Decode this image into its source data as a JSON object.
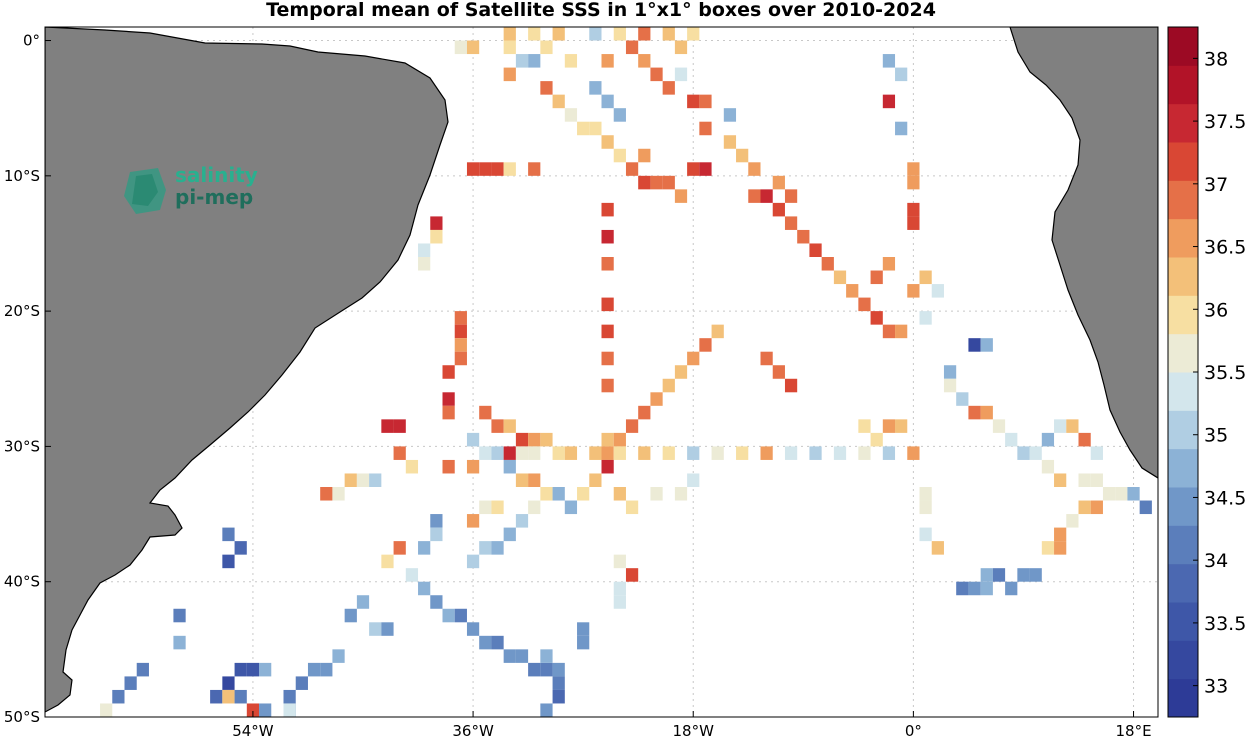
{
  "title": "Temporal mean of Satellite SSS in 1°x1° boxes over 2010-2024",
  "logo": {
    "line1": "salinity",
    "line2": "pi-mep"
  },
  "axes": {
    "x_ticks": [
      {
        "lon": -54,
        "label": "54°W"
      },
      {
        "lon": -36,
        "label": "36°W"
      },
      {
        "lon": -18,
        "label": "18°W"
      },
      {
        "lon": 0,
        "label": "0°"
      },
      {
        "lon": 18,
        "label": "18°E"
      }
    ],
    "y_ticks": [
      {
        "lat": 0,
        "label": "0°"
      },
      {
        "lat": -10,
        "label": "10°S"
      },
      {
        "lat": -20,
        "label": "20°S"
      },
      {
        "lat": -30,
        "label": "30°S"
      },
      {
        "lat": -40,
        "label": "40°S"
      },
      {
        "lat": -50,
        "label": "50°S"
      }
    ],
    "lon_range": [
      -71,
      20
    ],
    "lat_range": [
      -50,
      1
    ]
  },
  "colorbar": {
    "min": 32.75,
    "max": 38.25,
    "tick_values": [
      33,
      33.5,
      34,
      34.5,
      35,
      35.5,
      36,
      36.5,
      37,
      37.5,
      38
    ],
    "tick_labels": [
      "33",
      "33.5",
      "34",
      "34.5",
      "35",
      "35.5",
      "36",
      "36.5",
      "37",
      "37.5",
      "38"
    ],
    "colors": [
      "#2d3b97",
      "#35489f",
      "#3e57a8",
      "#4b68b1",
      "#5b7ebb",
      "#7097c8",
      "#8cb2d6",
      "#b0cee3",
      "#d3e6ec",
      "#ecebd6",
      "#f7dfa2",
      "#f3c079",
      "#ef9c5e",
      "#e57048",
      "#d94734",
      "#c72832",
      "#b21328",
      "#9c0a24"
    ]
  },
  "colors": {
    "land": "#808080",
    "coast": "#000000",
    "grid": "#c8c8c8"
  },
  "chart_data": {
    "type": "heatmap",
    "title": "Temporal mean of Satellite SSS in 1°x1° boxes over 2010-2024",
    "units": "psu",
    "cell_size_deg": 1,
    "cells": [
      [
        -36,
        -9.5,
        37.2
      ],
      [
        -35,
        -9.5,
        37.3
      ],
      [
        -34,
        -9.5,
        37.1
      ],
      [
        -33,
        -9.5,
        36.0
      ],
      [
        -31,
        -9.5,
        37.0
      ],
      [
        -22,
        -10.5,
        37.3
      ],
      [
        -21,
        -10.5,
        37.0
      ],
      [
        -20,
        -10.5,
        36.8
      ],
      [
        -19,
        -11.5,
        36.7
      ],
      [
        -18,
        -9.5,
        37.2
      ],
      [
        -17,
        -9.5,
        37.4
      ],
      [
        -13,
        -11.5,
        37.0
      ],
      [
        -12,
        -11.5,
        37.5
      ],
      [
        -11,
        -12.5,
        37.1
      ],
      [
        -10,
        -13.5,
        37.0
      ],
      [
        -9,
        -14.5,
        36.8
      ],
      [
        -8,
        -15.5,
        37.2
      ],
      [
        -7,
        -16.5,
        36.9
      ],
      [
        -6,
        -17.5,
        36.3
      ],
      [
        -5,
        -18.5,
        36.5
      ],
      [
        -4,
        -19.5,
        36.9
      ],
      [
        -3,
        -20.5,
        37.3
      ],
      [
        -2,
        -21.5,
        37.0
      ],
      [
        -1,
        -21.5,
        36.5
      ],
      [
        -25,
        -12.5,
        37.3
      ],
      [
        -25,
        -14.5,
        37.6
      ],
      [
        -25,
        -16.5,
        37.0
      ],
      [
        -25,
        -19.5,
        37.1
      ],
      [
        -25,
        -21.5,
        37.2
      ],
      [
        -25,
        -23.5,
        36.9
      ],
      [
        -25,
        -25.5,
        36.8
      ],
      [
        -39,
        -13.5,
        37.4
      ],
      [
        -39,
        -14.5,
        36.1
      ],
      [
        -40,
        -15.5,
        35.2
      ],
      [
        -40,
        -16.5,
        35.8
      ],
      [
        -37,
        -20.5,
        36.9
      ],
      [
        -37,
        -21.5,
        37.2
      ],
      [
        -37,
        -22.5,
        36.7
      ],
      [
        -37,
        -23.5,
        36.8
      ],
      [
        -38,
        -24.5,
        37.3
      ],
      [
        -38,
        -26.5,
        37.4
      ],
      [
        -38,
        -27.5,
        36.9
      ],
      [
        -43,
        -28.5,
        37.4
      ],
      [
        -42,
        -28.5,
        37.5
      ],
      [
        -35,
        -27.5,
        36.8
      ],
      [
        -34,
        -28.5,
        36.9
      ],
      [
        -33,
        -28.5,
        36.4
      ],
      [
        -32,
        -29.5,
        37.1
      ],
      [
        -31,
        -29.5,
        36.6
      ],
      [
        -30,
        -29.5,
        36.3
      ],
      [
        -25,
        -29.5,
        36.3
      ],
      [
        -24,
        -29.5,
        36.5
      ],
      [
        -23,
        -28.5,
        36.9
      ],
      [
        -22,
        -27.5,
        37.0
      ],
      [
        -21,
        -26.5,
        36.7
      ],
      [
        -20,
        -25.5,
        36.3
      ],
      [
        -19,
        -24.5,
        36.2
      ],
      [
        -18,
        -23.5,
        36.5
      ],
      [
        -17,
        -22.5,
        36.9
      ],
      [
        -16,
        -21.5,
        36.4
      ],
      [
        -12,
        -23.5,
        37.0
      ],
      [
        -11,
        -24.5,
        36.9
      ],
      [
        -10,
        -25.5,
        37.1
      ],
      [
        -2,
        -16.5,
        36.5
      ],
      [
        -3,
        -17.5,
        36.8
      ],
      [
        0,
        -18.5,
        36.6
      ],
      [
        1,
        -17.5,
        36.3
      ],
      [
        2,
        -18.5,
        35.4
      ],
      [
        1,
        -20.5,
        35.2
      ],
      [
        3,
        -24.5,
        34.8
      ],
      [
        3,
        -25.5,
        35.7
      ],
      [
        5,
        -22.5,
        33.2
      ],
      [
        6,
        -22.5,
        34.7
      ],
      [
        -35,
        -30.5,
        35.3
      ],
      [
        -34,
        -30.5,
        35.0
      ],
      [
        -33,
        -30.5,
        37.5
      ],
      [
        -32,
        -30.5,
        35.8
      ],
      [
        -31,
        -30.5,
        35.6
      ],
      [
        -29,
        -30.5,
        35.9
      ],
      [
        -28,
        -30.5,
        36.3
      ],
      [
        -26,
        -30.5,
        36.4
      ],
      [
        -25,
        -30.5,
        36.6
      ],
      [
        -24,
        -30.5,
        35.9
      ],
      [
        -22,
        -30.5,
        36.2
      ],
      [
        -20,
        -30.5,
        36.0
      ],
      [
        -18,
        -30.5,
        35.1
      ],
      [
        -16,
        -30.5,
        35.8
      ],
      [
        -14,
        -30.5,
        36.1
      ],
      [
        -12,
        -30.5,
        36.6
      ],
      [
        -10,
        -30.5,
        35.4
      ],
      [
        -8,
        -30.5,
        35.1
      ],
      [
        -6,
        -30.5,
        35.3
      ],
      [
        -4,
        -30.5,
        35.8
      ],
      [
        -2,
        -30.5,
        35.0
      ],
      [
        0,
        -30.5,
        36.7
      ],
      [
        -33,
        -31.5,
        34.8
      ],
      [
        -32,
        -32.5,
        36.3
      ],
      [
        -31,
        -32.5,
        36.5
      ],
      [
        -30,
        -33.5,
        35.9
      ],
      [
        -29,
        -33.5,
        34.6
      ],
      [
        -28,
        -34.5,
        34.7
      ],
      [
        -27,
        -33.5,
        36.0
      ],
      [
        -26,
        -32.5,
        36.3
      ],
      [
        -25,
        -31.5,
        37.6
      ],
      [
        -24,
        -33.5,
        36.2
      ],
      [
        -23,
        -34.5,
        36.1
      ],
      [
        -21,
        -33.5,
        35.6
      ],
      [
        -19,
        -33.5,
        35.6
      ],
      [
        -18,
        -32.5,
        35.3
      ],
      [
        -42,
        -30.5,
        36.9
      ],
      [
        -41,
        -31.5,
        35.9
      ],
      [
        -46,
        -32.5,
        36.2
      ],
      [
        -45,
        -32.5,
        35.6
      ],
      [
        -44,
        -32.5,
        35.0
      ],
      [
        -48,
        -33.5,
        36.9
      ],
      [
        -47,
        -33.5,
        35.7
      ],
      [
        -38,
        -31.5,
        36.8
      ],
      [
        -36,
        -29.5,
        35.0
      ],
      [
        -36,
        -31.5,
        36.5
      ],
      [
        -35,
        -34.5,
        35.5
      ],
      [
        -34,
        -34.5,
        36.0
      ],
      [
        -36,
        -35.5,
        36.7
      ],
      [
        -39,
        -35.5,
        34.3
      ],
      [
        -39,
        -36.5,
        35.0
      ],
      [
        -40,
        -37.5,
        34.8
      ],
      [
        -42,
        -37.5,
        36.8
      ],
      [
        -43,
        -38.5,
        35.9
      ],
      [
        -41,
        -39.5,
        35.4
      ],
      [
        -40,
        -40.5,
        34.8
      ],
      [
        -39,
        -41.5,
        34.5
      ],
      [
        -36,
        -38.5,
        34.9
      ],
      [
        -35,
        -37.5,
        35.0
      ],
      [
        -34,
        -37.5,
        34.6
      ],
      [
        -33,
        -36.5,
        34.7
      ],
      [
        -32,
        -35.5,
        35.0
      ],
      [
        -31,
        -34.5,
        35.5
      ],
      [
        -38,
        -42.5,
        34.7
      ],
      [
        -37,
        -42.5,
        34.2
      ],
      [
        -36,
        -43.5,
        34.5
      ],
      [
        -35,
        -44.5,
        34.3
      ],
      [
        -34,
        -44.5,
        34.0
      ],
      [
        -33,
        -45.5,
        34.5
      ],
      [
        -32,
        -45.5,
        34.3
      ],
      [
        -31,
        -46.5,
        34.1
      ],
      [
        -30,
        -46.5,
        34.2
      ],
      [
        -46,
        -42.5,
        34.3
      ],
      [
        -45,
        -41.5,
        34.6
      ],
      [
        -44,
        -43.5,
        35.0
      ],
      [
        -43,
        -43.5,
        34.4
      ],
      [
        -47,
        -45.5,
        34.7
      ],
      [
        -49,
        -46.5,
        34.3
      ],
      [
        -48,
        -46.5,
        34.5
      ],
      [
        -50,
        -47.5,
        34.0
      ],
      [
        -51,
        -48.5,
        34.2
      ],
      [
        -53,
        -46.5,
        34.8
      ],
      [
        -54,
        -46.5,
        33.4
      ],
      [
        -55,
        -46.5,
        33.6
      ],
      [
        -56,
        -47.5,
        33.3
      ],
      [
        -57,
        -48.5,
        33.9
      ],
      [
        -56,
        -48.5,
        36.4
      ],
      [
        -55,
        -48.5,
        34.1
      ],
      [
        -54,
        -49.5,
        37.3
      ],
      [
        -51,
        -49.5,
        34.4
      ],
      [
        -53,
        -49.5,
        34.3
      ],
      [
        -63,
        -46.5,
        34.0
      ],
      [
        -64,
        -47.5,
        34.2
      ],
      [
        -65,
        -48.5,
        34.0
      ],
      [
        -66,
        -49.5,
        35.8
      ],
      [
        -60,
        -42.5,
        34.2
      ],
      [
        -60,
        -44.5,
        34.6
      ],
      [
        -56,
        -38.5,
        33.5
      ],
      [
        -55,
        -37.5,
        33.8
      ],
      [
        -56,
        -36.5,
        34.2
      ],
      [
        -51,
        -49.5,
        35.2
      ],
      [
        -30,
        -45.5,
        34.6
      ],
      [
        -29,
        -46.5,
        34.4
      ],
      [
        -29,
        -47.5,
        34.0
      ],
      [
        -29,
        -48.5,
        33.8
      ],
      [
        -30,
        -49.5,
        34.3
      ],
      [
        -27,
        -43.5,
        34.5
      ],
      [
        -27,
        -44.5,
        34.5
      ],
      [
        -24,
        -40.5,
        35.4
      ],
      [
        -24,
        -41.5,
        35.2
      ],
      [
        -23,
        -39.5,
        37.1
      ],
      [
        -24,
        -38.5,
        35.7
      ],
      [
        1,
        -36.5,
        35.3
      ],
      [
        2,
        -37.5,
        36.2
      ],
      [
        1,
        -34.5,
        35.6
      ],
      [
        1,
        -33.5,
        35.6
      ],
      [
        4,
        -40.5,
        34.1
      ],
      [
        5,
        -40.5,
        34.4
      ],
      [
        6,
        -40.5,
        34.7
      ],
      [
        6,
        -39.5,
        34.8
      ],
      [
        7,
        -39.5,
        34.2
      ],
      [
        8,
        -40.5,
        34.5
      ],
      [
        9,
        -39.5,
        34.3
      ],
      [
        10,
        -39.5,
        34.3
      ],
      [
        11,
        -37.5,
        36.1
      ],
      [
        12,
        -37.5,
        36.7
      ],
      [
        12,
        -36.5,
        36.5
      ],
      [
        13,
        -35.5,
        35.7
      ],
      [
        14,
        -34.5,
        36.2
      ],
      [
        15,
        -34.5,
        36.6
      ],
      [
        16,
        -33.5,
        35.5
      ],
      [
        17,
        -33.5,
        35.5
      ],
      [
        18,
        -33.5,
        34.6
      ],
      [
        19,
        -34.5,
        34.1
      ],
      [
        14,
        -32.5,
        35.5
      ],
      [
        15,
        -32.5,
        35.7
      ],
      [
        12,
        -32.5,
        36.3
      ],
      [
        11,
        -31.5,
        35.6
      ],
      [
        10,
        -30.5,
        35.2
      ],
      [
        9,
        -30.5,
        35.0
      ],
      [
        8,
        -29.5,
        35.4
      ],
      [
        7,
        -28.5,
        35.6
      ],
      [
        6,
        -27.5,
        36.5
      ],
      [
        5,
        -27.5,
        37.0
      ],
      [
        4,
        -26.5,
        35.1
      ],
      [
        11,
        -29.5,
        34.8
      ],
      [
        12,
        -28.5,
        35.3
      ],
      [
        13,
        -28.5,
        36.2
      ],
      [
        14,
        -29.5,
        36.8
      ],
      [
        15,
        -30.5,
        35.2
      ],
      [
        -1,
        -28.5,
        36.2
      ],
      [
        -2,
        -28.5,
        36.7
      ],
      [
        -3,
        -29.5,
        36.1
      ],
      [
        -4,
        -28.5,
        36.0
      ],
      [
        -1,
        -2.5,
        35.1
      ],
      [
        -1,
        -6.5,
        34.6
      ],
      [
        0,
        -10.5,
        36.6
      ],
      [
        0,
        -9.5,
        36.5
      ],
      [
        0,
        -12.5,
        37.3
      ],
      [
        0,
        -13.5,
        37.3
      ],
      [
        -2,
        -1.5,
        34.7
      ],
      [
        -2,
        -4.5,
        37.6
      ],
      [
        -23,
        -0.5,
        36.9
      ],
      [
        -22,
        -1.5,
        36.5
      ],
      [
        -21,
        -2.5,
        37.0
      ],
      [
        -20,
        -3.5,
        36.8
      ],
      [
        -19,
        -0.5,
        36.4
      ],
      [
        -19,
        -2.5,
        35.2
      ],
      [
        -17,
        -4.5,
        36.8
      ],
      [
        -17,
        -6.5,
        37.0
      ],
      [
        -18,
        -4.5,
        37.3
      ],
      [
        -15,
        -5.5,
        34.7
      ],
      [
        -15,
        -7.5,
        36.4
      ],
      [
        -14,
        -8.5,
        36.3
      ],
      [
        -13,
        -9.5,
        36.7
      ],
      [
        -11,
        -10.5,
        36.7
      ],
      [
        -10,
        -11.5,
        36.8
      ],
      [
        -30,
        -0.5,
        36.0
      ],
      [
        -31,
        -1.5,
        34.8
      ],
      [
        -32,
        -1.5,
        34.9
      ],
      [
        -33,
        -2.5,
        36.7
      ],
      [
        -30,
        -3.5,
        36.9
      ],
      [
        -29,
        -4.5,
        36.4
      ],
      [
        -28,
        -5.5,
        35.6
      ],
      [
        -27,
        -6.5,
        36.1
      ],
      [
        -26,
        -6.5,
        35.9
      ],
      [
        -25,
        -7.5,
        36.3
      ],
      [
        -24,
        -8.5,
        36.1
      ],
      [
        -23,
        -9.5,
        36.8
      ],
      [
        -22,
        -8.5,
        36.5
      ],
      [
        -37,
        -0.5,
        35.6
      ],
      [
        -36,
        -0.5,
        36.3
      ],
      [
        -33,
        -0.5,
        35.9
      ],
      [
        -28,
        -1.5,
        36.0
      ],
      [
        -26,
        -3.5,
        34.6
      ],
      [
        -25,
        -4.5,
        34.6
      ],
      [
        -24,
        -5.5,
        34.7
      ],
      [
        -25,
        -1.5,
        36.7
      ],
      [
        -33,
        0.5,
        36.2
      ],
      [
        -31,
        0.5,
        36.0
      ],
      [
        -29,
        0.5,
        36.4
      ],
      [
        -26,
        0.5,
        34.9
      ],
      [
        -24,
        0.5,
        36.1
      ],
      [
        -22,
        0.5,
        36.8
      ],
      [
        -20,
        0.5,
        36.2
      ],
      [
        -18,
        0.5,
        35.9
      ]
    ]
  }
}
